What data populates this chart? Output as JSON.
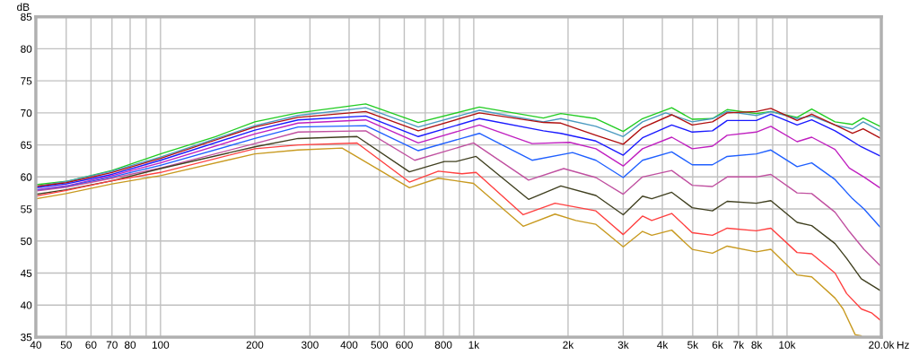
{
  "chart_data": {
    "type": "line",
    "xlabel": "Hz",
    "ylabel": "dB",
    "log": "x",
    "grid": true,
    "marker": "none",
    "line_style": "solid",
    "xlim": [
      40,
      20000
    ],
    "ylim": [
      35,
      85
    ],
    "xticks": [
      40,
      50,
      60,
      70,
      80,
      {
        "value": 90,
        "label": null
      },
      100,
      200,
      300,
      400,
      500,
      600,
      {
        "value": 700,
        "label": null
      },
      800,
      {
        "value": 900,
        "label": null
      },
      {
        "value": 1000,
        "label": "1k"
      },
      {
        "value": 2000,
        "label": "2k"
      },
      {
        "value": 3000,
        "label": "3k"
      },
      {
        "value": 4000,
        "label": "4k"
      },
      {
        "value": 5000,
        "label": "5k"
      },
      {
        "value": 6000,
        "label": "6k"
      },
      {
        "value": 7000,
        "label": "7k"
      },
      {
        "value": 8000,
        "label": "8k"
      },
      {
        "value": 9000,
        "label": null
      },
      {
        "value": 10000,
        "label": "10k"
      },
      {
        "value": 20000,
        "label": "20.0k"
      }
    ],
    "yticks": [
      35,
      40,
      45,
      50,
      55,
      60,
      65,
      70,
      75,
      80,
      85
    ],
    "series": [
      {
        "color": "#22cc22",
        "x": [
          40,
          50,
          70,
          100,
          150,
          200,
          275,
          452,
          665,
          1042,
          1668,
          1897,
          2454,
          3000,
          3457,
          4285,
          4980,
          5780,
          6440,
          7980,
          8880,
          10770,
          11990,
          14230,
          16180,
          17500,
          19800
        ],
        "values": [
          58.8,
          59.3,
          61.0,
          63.6,
          66.3,
          68.6,
          70.0,
          71.4,
          68.5,
          70.9,
          69.2,
          69.9,
          69.1,
          67.1,
          69.1,
          70.8,
          69.0,
          69.1,
          70.5,
          69.9,
          70.2,
          69.3,
          70.6,
          68.6,
          68.2,
          69.2,
          67.9
        ]
      },
      {
        "color": "#4a9ac0",
        "x": [
          40,
          50,
          70,
          100,
          200,
          275,
          452,
          665,
          1042,
          1668,
          1897,
          2454,
          3000,
          3457,
          4100,
          4980,
          5780,
          6440,
          7980,
          8880,
          10770,
          11990,
          14230,
          16180,
          17500,
          19800
        ],
        "values": [
          58.5,
          59.3,
          60.9,
          63.1,
          68.0,
          69.6,
          70.8,
          67.8,
          70.4,
          68.6,
          69.1,
          67.9,
          66.3,
          68.6,
          70.0,
          68.6,
          69.1,
          70.2,
          69.6,
          70.2,
          69.1,
          69.5,
          68.1,
          67.5,
          68.6,
          67.2
        ]
      },
      {
        "color": "#b01010",
        "x": [
          40,
          50,
          70,
          100,
          200,
          275,
          452,
          665,
          1042,
          1668,
          1897,
          2454,
          3000,
          3457,
          4285,
          4980,
          5780,
          6440,
          7980,
          8880,
          10770,
          11990,
          14230,
          16180,
          17500,
          19800
        ],
        "values": [
          58.5,
          59.1,
          60.7,
          62.9,
          67.8,
          69.3,
          70.2,
          67.2,
          70.0,
          68.5,
          68.4,
          66.5,
          65.1,
          67.7,
          69.7,
          68.1,
          68.6,
          70.0,
          70.2,
          70.7,
          68.8,
          69.8,
          68.1,
          66.8,
          67.5,
          66.1
        ]
      },
      {
        "color": "#1a1aff",
        "x": [
          40,
          50,
          70,
          100,
          200,
          275,
          452,
          665,
          1042,
          1668,
          1897,
          2454,
          3000,
          3457,
          4285,
          4980,
          5780,
          6440,
          7980,
          8880,
          10770,
          11990,
          14230,
          15500,
          17260,
          19800
        ],
        "values": [
          58.3,
          58.9,
          60.4,
          62.6,
          67.3,
          68.9,
          69.5,
          66.3,
          69.1,
          67.2,
          66.8,
          65.6,
          63.4,
          66.1,
          68.1,
          67.0,
          67.2,
          68.8,
          68.8,
          69.8,
          68.1,
          68.9,
          67.2,
          66.1,
          64.7,
          63.3
        ]
      },
      {
        "color": "#c020c0",
        "x": [
          40,
          50,
          70,
          100,
          200,
          275,
          452,
          665,
          1042,
          1535,
          2025,
          2454,
          3000,
          3457,
          4285,
          4980,
          5780,
          6440,
          7980,
          8880,
          10770,
          11990,
          14230,
          15800,
          17600,
          19800
        ],
        "values": [
          58.0,
          58.6,
          60.2,
          62.2,
          66.7,
          68.4,
          68.9,
          65.3,
          68.1,
          65.2,
          65.4,
          64.4,
          61.7,
          64.4,
          66.2,
          64.4,
          64.8,
          66.5,
          67.0,
          67.9,
          65.5,
          66.2,
          64.3,
          61.4,
          60.0,
          58.3
        ]
      },
      {
        "color": "#2060ff",
        "x": [
          40,
          50,
          70,
          100,
          200,
          275,
          452,
          665,
          1042,
          1535,
          2067,
          2454,
          3000,
          3457,
          4285,
          4980,
          5780,
          6440,
          7980,
          8880,
          10770,
          11990,
          14230,
          16180,
          17600,
          19800
        ],
        "values": [
          57.9,
          58.5,
          60.0,
          61.8,
          66.0,
          67.8,
          68.0,
          64.1,
          66.8,
          62.6,
          63.8,
          62.6,
          59.9,
          62.6,
          63.9,
          61.9,
          61.9,
          63.2,
          63.6,
          64.2,
          61.6,
          62.2,
          59.6,
          56.6,
          55.0,
          52.2
        ]
      },
      {
        "color": "#c050a0",
        "x": [
          40,
          50,
          70,
          100,
          200,
          275,
          452,
          648,
          998,
          1496,
          1937,
          2454,
          3000,
          3457,
          4285,
          4980,
          5780,
          6440,
          7980,
          8880,
          10770,
          11990,
          14230,
          15800,
          17600,
          19800
        ],
        "values": [
          57.8,
          58.4,
          59.8,
          61.4,
          65.2,
          67.0,
          67.2,
          62.6,
          65.3,
          59.5,
          61.3,
          59.9,
          57.3,
          60.0,
          61.0,
          58.7,
          58.5,
          60.0,
          60.0,
          60.4,
          57.5,
          57.4,
          54.5,
          51.5,
          48.7,
          46.2
        ]
      },
      {
        "color": "#404020",
        "x": [
          40,
          50,
          70,
          100,
          200,
          275,
          424,
          623,
          806,
          877,
          1017,
          1496,
          1897,
          2454,
          3000,
          3457,
          3700,
          4285,
          4980,
          5780,
          6440,
          7980,
          8880,
          10770,
          11990,
          14230,
          15500,
          17260,
          19800
        ],
        "values": [
          57.3,
          58.0,
          59.4,
          61.3,
          64.7,
          66.0,
          66.3,
          60.8,
          62.4,
          62.4,
          63.2,
          56.5,
          58.6,
          57.1,
          54.1,
          57.0,
          56.6,
          57.6,
          55.2,
          54.7,
          56.2,
          55.9,
          56.3,
          52.9,
          52.4,
          49.6,
          47.3,
          44.1,
          42.3
        ]
      },
      {
        "color": "#ff4040",
        "x": [
          40,
          50,
          70,
          100,
          200,
          275,
          424,
          623,
          771,
          917,
          1017,
          1438,
          1817,
          2454,
          3000,
          3457,
          3700,
          4285,
          4980,
          5780,
          6440,
          7980,
          8880,
          10770,
          11990,
          14230,
          15500,
          17260,
          18600,
          19800
        ],
        "values": [
          57.0,
          57.9,
          59.4,
          60.7,
          64.4,
          65.0,
          65.3,
          59.2,
          60.9,
          60.5,
          60.7,
          54.1,
          55.9,
          54.7,
          51.0,
          53.9,
          53.2,
          54.3,
          51.3,
          50.9,
          52.0,
          51.6,
          52.0,
          48.2,
          48.0,
          45.0,
          41.8,
          39.4,
          38.8,
          37.7
        ]
      },
      {
        "color": "#c89a20",
        "x": [
          40,
          50,
          70,
          100,
          200,
          275,
          380,
          623,
          771,
          998,
          1438,
          1817,
          2118,
          2454,
          3000,
          3457,
          3700,
          4285,
          4980,
          5780,
          6440,
          7980,
          8880,
          10770,
          11990,
          14230,
          15100,
          16500,
          17260
        ],
        "values": [
          56.6,
          57.4,
          58.9,
          60.2,
          63.6,
          64.2,
          64.5,
          58.3,
          59.8,
          59.0,
          52.3,
          54.2,
          53.2,
          52.6,
          49.1,
          51.5,
          50.9,
          51.7,
          48.7,
          48.1,
          49.2,
          48.3,
          48.7,
          44.7,
          44.4,
          41.1,
          39.4,
          35.4,
          35.2
        ]
      }
    ]
  }
}
